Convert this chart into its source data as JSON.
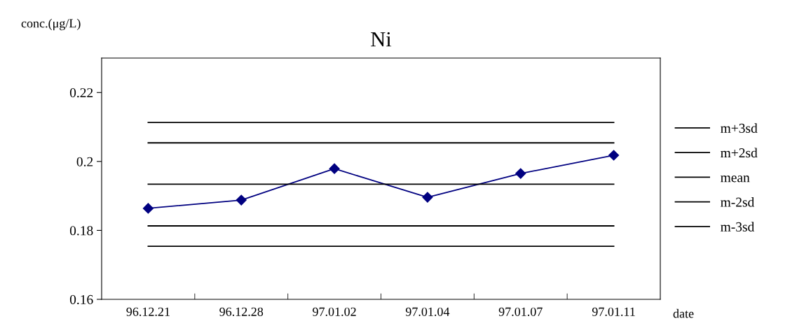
{
  "chart_data": {
    "type": "line",
    "title": "Ni",
    "xlabel": "date",
    "ylabel": "conc.(μg/L)",
    "categories": [
      "96.12.21",
      "96.12.28",
      "97.01.02",
      "97.01.04",
      "97.01.07",
      "97.01.11"
    ],
    "series": [
      {
        "color": "#000080",
        "marker": "diamond",
        "values": [
          0.1864,
          0.1888,
          0.1979,
          0.1896,
          0.1965,
          0.2018
        ]
      },
      {
        "name": "m+3sd",
        "color": "#000000",
        "marker": "none",
        "values": [
          0.2113,
          0.2113,
          0.2113,
          0.2113,
          0.2113,
          0.2113
        ]
      },
      {
        "name": "m+2sd",
        "color": "#000000",
        "marker": "none",
        "values": [
          0.2054,
          0.2054,
          0.2054,
          0.2054,
          0.2054,
          0.2054
        ]
      },
      {
        "name": "mean",
        "color": "#000000",
        "marker": "none",
        "values": [
          0.1934,
          0.1934,
          0.1934,
          0.1934,
          0.1934,
          0.1934
        ]
      },
      {
        "name": "m-2sd",
        "color": "#000000",
        "marker": "none",
        "values": [
          0.1813,
          0.1813,
          0.1813,
          0.1813,
          0.1813,
          0.1813
        ]
      },
      {
        "name": "m-3sd",
        "color": "#000000",
        "marker": "none",
        "values": [
          0.1754,
          0.1754,
          0.1754,
          0.1754,
          0.1754,
          0.1754
        ]
      }
    ],
    "line_style": "solid",
    "grid": false,
    "legend": "right",
    "ylim": [
      0.16,
      0.23
    ],
    "yticks": [
      0.16,
      0.18,
      0.2,
      0.22
    ]
  }
}
